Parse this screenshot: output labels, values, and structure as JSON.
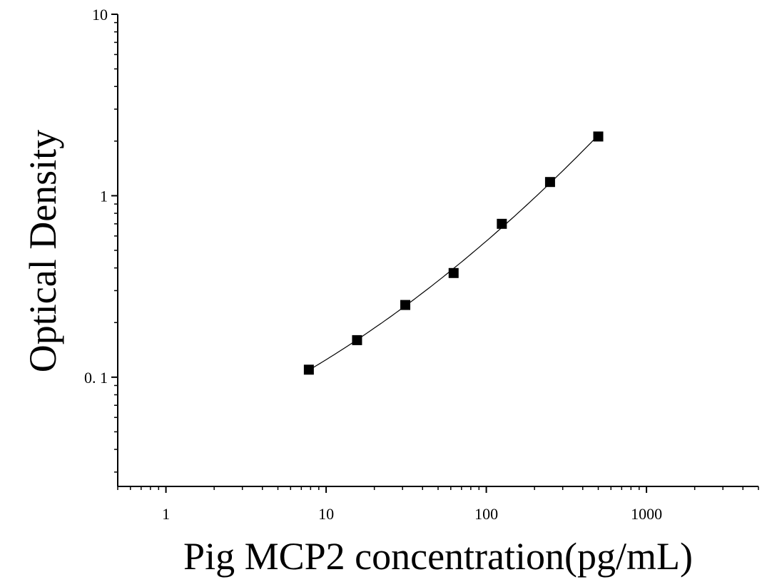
{
  "chart_data": {
    "type": "scatter",
    "title": "",
    "xlabel": "Pig MCP2 concentration(pg/mL)",
    "ylabel": "Optical Density",
    "xscale": "log",
    "yscale": "log",
    "xlim": [
      0.5,
      5000
    ],
    "ylim": [
      0.025,
      10
    ],
    "x_tick_labels": [
      "1",
      "10",
      "100",
      "1000"
    ],
    "y_tick_labels": [
      "0. 1",
      "1",
      "10"
    ],
    "grid": false,
    "legend": "none",
    "marker": "square",
    "fit_curve": true,
    "color": "#000000",
    "series": [
      {
        "x": [
          7.8,
          15.6,
          31.2,
          62.5,
          125,
          250,
          500
        ],
        "y": [
          0.11,
          0.16,
          0.25,
          0.375,
          0.7,
          1.19,
          2.12
        ]
      }
    ]
  }
}
